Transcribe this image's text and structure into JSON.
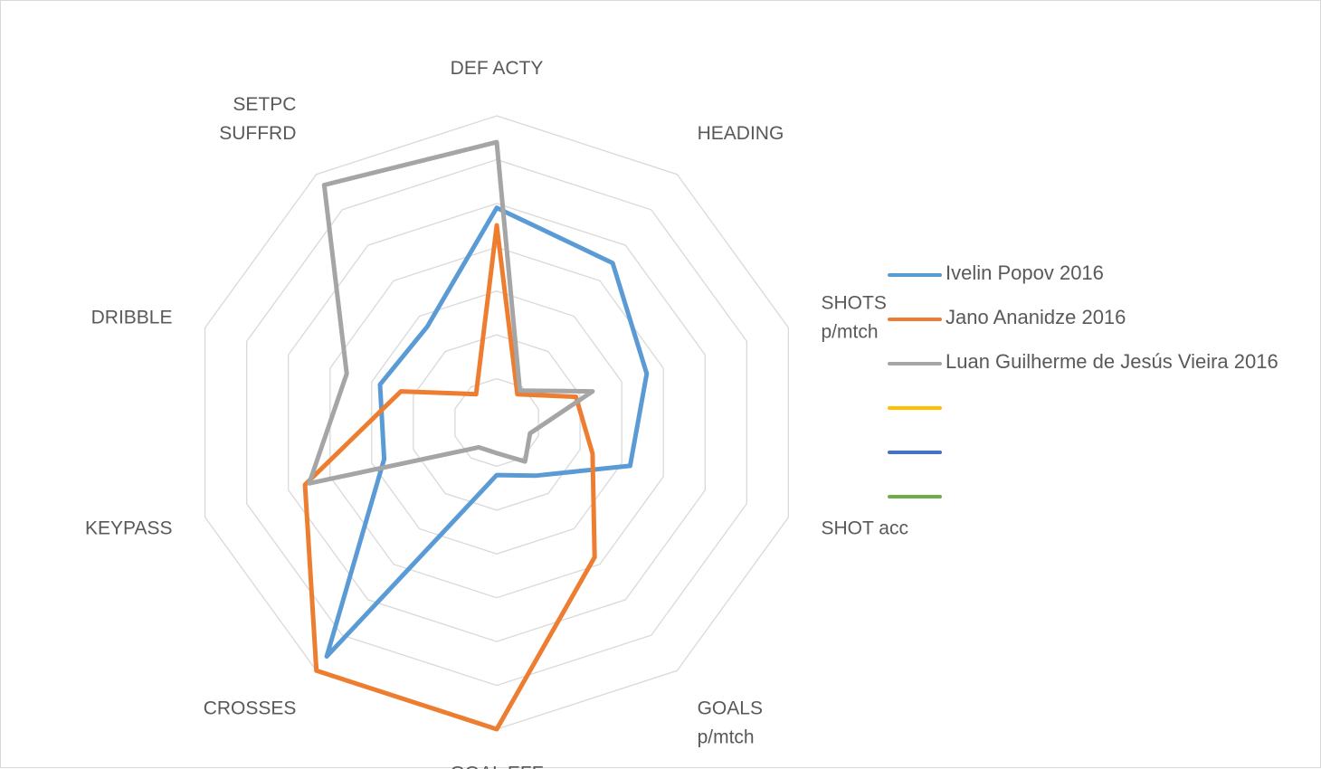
{
  "chart_data": {
    "type": "radar",
    "axes": [
      [
        "DEF ACTY"
      ],
      [
        "HEADING"
      ],
      [
        "SHOTS",
        "p/mtch"
      ],
      [
        "SHOT acc"
      ],
      [
        "GOALS",
        "p/mtch"
      ],
      [
        "GOAL EFF"
      ],
      [
        "CROSSES"
      ],
      [
        "KEYPASS"
      ],
      [
        "DRIBBLE"
      ],
      [
        "SETPC",
        "SUFFRD"
      ]
    ],
    "rlim": [
      0,
      7
    ],
    "grid_rings": 7,
    "grid": true,
    "legend_position": "right",
    "series": [
      {
        "name": "Ivelin Popov 2016",
        "color": "#5b9bd5",
        "values": [
          4.9,
          4.5,
          3.6,
          3.2,
          1.5,
          1.2,
          6.6,
          2.7,
          2.8,
          2.7
        ]
      },
      {
        "name": "Jano Ananidze 2016",
        "color": "#ed7d31",
        "values": [
          4.5,
          0.8,
          1.9,
          2.3,
          3.8,
          7.0,
          7.0,
          4.6,
          2.3,
          0.8
        ]
      },
      {
        "name": "Luan Guilherme de Jesús Vieira 2016",
        "color": "#a5a5a5",
        "values": [
          6.4,
          0.9,
          2.3,
          0.8,
          1.1,
          0.7,
          0.7,
          4.5,
          3.6,
          6.7
        ]
      },
      {
        "name": "",
        "color": "#ffc000",
        "values": []
      },
      {
        "name": "",
        "color": "#4472c4",
        "values": []
      },
      {
        "name": "",
        "color": "#70ad47",
        "values": []
      }
    ]
  }
}
